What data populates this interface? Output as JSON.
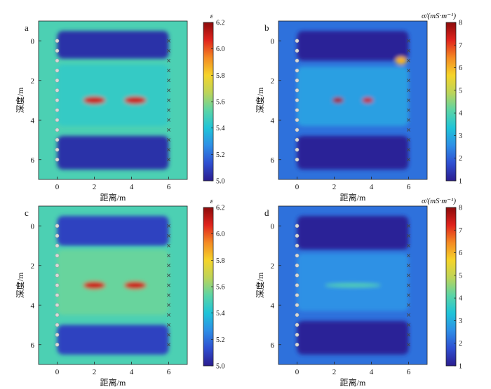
{
  "figure": {
    "colormap": [
      "#2b1d8f",
      "#2f4fd1",
      "#2e8ee6",
      "#1fc4d8",
      "#5bd4a6",
      "#bcd45a",
      "#f5d42a",
      "#f48a23",
      "#e0231d",
      "#8c0b0b"
    ],
    "background_colors": {
      "permittivity": "#6cc49b",
      "conductivity": "#4f78c8"
    }
  },
  "chart_data": [
    {
      "panel": "a",
      "type": "heatmap",
      "quantity": "permittivity",
      "xlabel": "距离/m",
      "ylabel": "深度/m",
      "xticks": [
        "0",
        "2",
        "4",
        "6"
      ],
      "yticks": [
        "0",
        "2",
        "4",
        "6"
      ],
      "xlim": [
        -1,
        7
      ],
      "ylim": [
        7,
        -1
      ],
      "colorbar": {
        "title": "ε",
        "min": 5.0,
        "max": 6.2,
        "ticks": [
          "6.2",
          "6.0",
          "5.8",
          "5.6",
          "5.4",
          "5.2",
          "5.0"
        ]
      },
      "background_value": 5.5,
      "regions": [
        {
          "shape": "layer",
          "x": [
            0,
            6
          ],
          "depth": [
            -0.5,
            0.9
          ],
          "value": 5.05
        },
        {
          "shape": "layer",
          "x": [
            0,
            6
          ],
          "depth": [
            1.2,
            4.3
          ],
          "value": 5.45
        },
        {
          "shape": "layer",
          "x": [
            0,
            6
          ],
          "depth": [
            4.8,
            6.5
          ],
          "value": 5.05
        },
        {
          "shape": "ellipse",
          "x": [
            1.4,
            2.6
          ],
          "depth": [
            2.8,
            3.2
          ],
          "value": 6.1
        },
        {
          "shape": "ellipse",
          "x": [
            3.6,
            4.8
          ],
          "depth": [
            2.8,
            3.2
          ],
          "value": 6.1
        }
      ],
      "transmitters_x": 0,
      "receivers_x": 6,
      "antenna_depths": [
        0,
        0.5,
        1.0,
        1.5,
        2.0,
        2.5,
        3.0,
        3.5,
        4.0,
        4.5,
        5.0,
        5.5,
        6.0
      ]
    },
    {
      "panel": "b",
      "type": "heatmap",
      "quantity": "conductivity",
      "xlabel": "距离/m",
      "ylabel": "深度/m",
      "xticks": [
        "0",
        "2",
        "4",
        "6"
      ],
      "yticks": [
        "0",
        "2",
        "4",
        "6"
      ],
      "xlim": [
        -1,
        7
      ],
      "ylim": [
        7,
        -1
      ],
      "colorbar": {
        "title": "σ/(mS·m⁻¹)",
        "min": 1,
        "max": 8,
        "ticks": [
          "8",
          "7",
          "6",
          "5",
          "4",
          "3",
          "2",
          "1"
        ]
      },
      "background_value": 2.2,
      "regions": [
        {
          "shape": "layer",
          "x": [
            0,
            6
          ],
          "depth": [
            -0.5,
            1.0
          ],
          "value": 1.1
        },
        {
          "shape": "layer",
          "x": [
            0,
            6
          ],
          "depth": [
            1.3,
            4.3
          ],
          "value": 2.8
        },
        {
          "shape": "layer",
          "x": [
            0,
            6
          ],
          "depth": [
            4.8,
            6.5
          ],
          "value": 1.1
        },
        {
          "shape": "ellipse",
          "x": [
            1.9,
            2.5
          ],
          "depth": [
            2.85,
            3.15
          ],
          "value": 7.8
        },
        {
          "shape": "ellipse",
          "x": [
            3.5,
            4.1
          ],
          "depth": [
            2.85,
            3.15
          ],
          "value": 7.5
        },
        {
          "shape": "ellipse",
          "x": [
            5.3,
            5.9
          ],
          "depth": [
            0.8,
            1.2
          ],
          "value": 6.0
        }
      ],
      "transmitters_x": 0,
      "receivers_x": 6,
      "antenna_depths": [
        0,
        0.5,
        1.0,
        1.5,
        2.0,
        2.5,
        3.0,
        3.5,
        4.0,
        4.5,
        5.0,
        5.5,
        6.0
      ]
    },
    {
      "panel": "c",
      "type": "heatmap",
      "quantity": "permittivity",
      "xlabel": "距离/m",
      "ylabel": "深度/m",
      "xticks": [
        "0",
        "2",
        "4",
        "6"
      ],
      "yticks": [
        "0",
        "2",
        "4",
        "6"
      ],
      "xlim": [
        -1,
        7
      ],
      "ylim": [
        7,
        -1
      ],
      "colorbar": {
        "title": "ε",
        "min": 5.0,
        "max": 6.2,
        "ticks": [
          "6.2",
          "6.0",
          "5.8",
          "5.6",
          "5.4",
          "5.2",
          "5.0"
        ]
      },
      "background_value": 5.5,
      "regions": [
        {
          "shape": "layer",
          "x": [
            0,
            6
          ],
          "depth": [
            -0.5,
            1.0
          ],
          "value": 5.1
        },
        {
          "shape": "layer",
          "x": [
            0,
            6
          ],
          "depth": [
            1.2,
            4.5
          ],
          "value": 5.55
        },
        {
          "shape": "layer",
          "x": [
            0,
            6
          ],
          "depth": [
            5.0,
            6.5
          ],
          "value": 5.1
        },
        {
          "shape": "ellipse",
          "x": [
            1.4,
            2.6
          ],
          "depth": [
            2.8,
            3.2
          ],
          "value": 6.1
        },
        {
          "shape": "ellipse",
          "x": [
            3.6,
            4.8
          ],
          "depth": [
            2.8,
            3.2
          ],
          "value": 6.1
        }
      ],
      "transmitters_x": 0,
      "receivers_x": 6,
      "antenna_depths": [
        0,
        0.5,
        1.0,
        1.5,
        2.0,
        2.5,
        3.0,
        3.5,
        4.0,
        4.5,
        5.0,
        5.5,
        6.0
      ]
    },
    {
      "panel": "d",
      "type": "heatmap",
      "quantity": "conductivity",
      "xlabel": "距离/m",
      "ylabel": "深度/m",
      "xticks": [
        "0",
        "2",
        "4",
        "6"
      ],
      "yticks": [
        "0",
        "2",
        "4",
        "6"
      ],
      "xlim": [
        -1,
        7
      ],
      "ylim": [
        7,
        -1
      ],
      "colorbar": {
        "title": "σ/(mS·m⁻¹)",
        "min": 1,
        "max": 8,
        "ticks": [
          "8",
          "7",
          "6",
          "5",
          "4",
          "3",
          "2",
          "1"
        ]
      },
      "background_value": 2.2,
      "regions": [
        {
          "shape": "layer",
          "x": [
            0,
            6
          ],
          "depth": [
            -0.5,
            1.2
          ],
          "value": 1.1
        },
        {
          "shape": "layer",
          "x": [
            0,
            6
          ],
          "depth": [
            1.4,
            4.3
          ],
          "value": 2.6
        },
        {
          "shape": "layer",
          "x": [
            0,
            6
          ],
          "depth": [
            4.8,
            6.5
          ],
          "value": 1.1
        },
        {
          "shape": "ellipse",
          "x": [
            1.5,
            4.5
          ],
          "depth": [
            2.9,
            3.1
          ],
          "value": 4.0
        }
      ],
      "transmitters_x": 0,
      "receivers_x": 6,
      "antenna_depths": [
        0,
        0.5,
        1.0,
        1.5,
        2.0,
        2.5,
        3.0,
        3.5,
        4.0,
        4.5,
        5.0,
        5.5,
        6.0
      ]
    }
  ]
}
